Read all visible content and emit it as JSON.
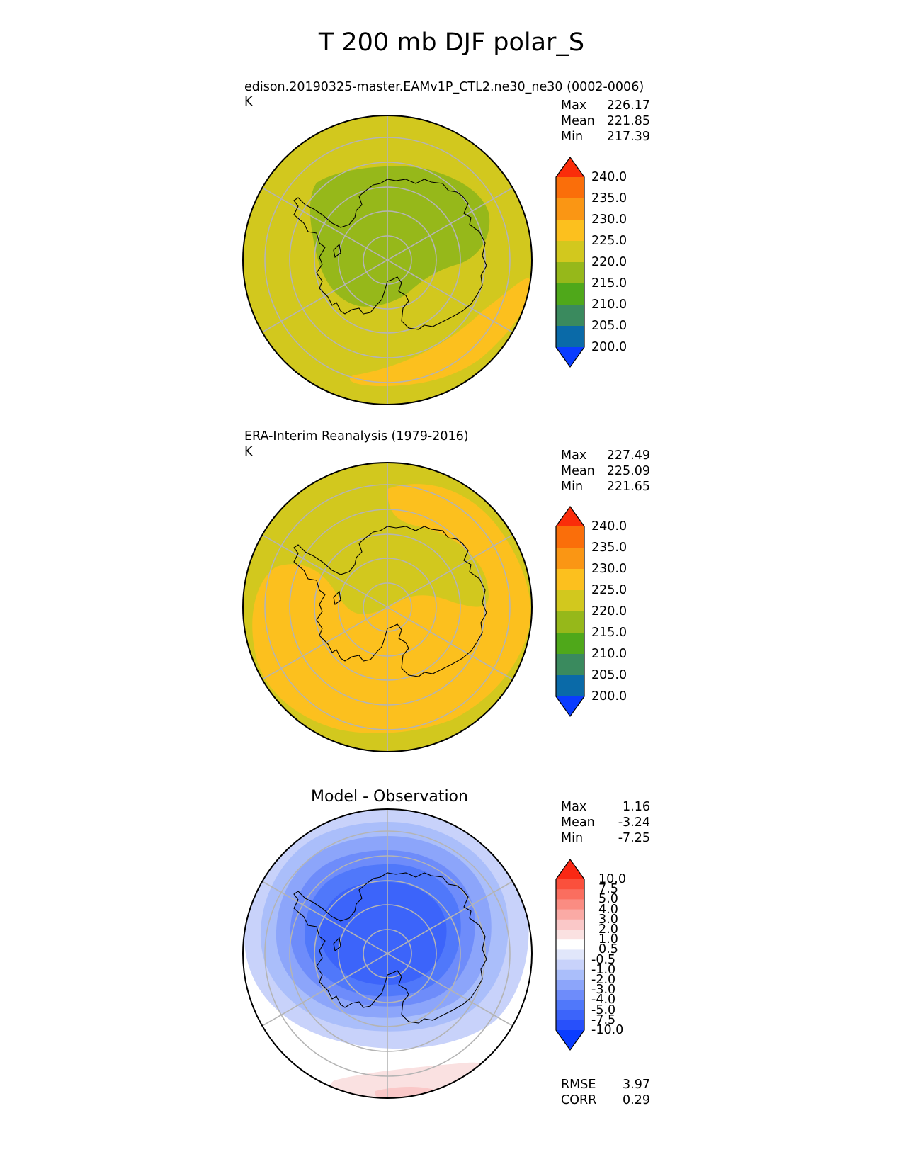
{
  "title": "T 200 mb DJF polar_S",
  "panels": [
    {
      "title": "edison.20190325-master.EAMv1P_CTL2.ne30_ne30 (0002-0006)",
      "units": "K",
      "stats": {
        "max_label": "Max",
        "max": "226.17",
        "mean_label": "Mean",
        "mean": "221.85",
        "min_label": "Min",
        "min": "217.39"
      },
      "colorbar_ticks": [
        "240.0",
        "235.0",
        "230.0",
        "225.0",
        "220.0",
        "215.0",
        "210.0",
        "205.0",
        "200.0"
      ]
    },
    {
      "title": "ERA-Interim Reanalysis (1979-2016)",
      "units": "K",
      "stats": {
        "max_label": "Max",
        "max": "227.49",
        "mean_label": "Mean",
        "mean": "225.09",
        "min_label": "Min",
        "min": "221.65"
      },
      "colorbar_ticks": [
        "240.0",
        "235.0",
        "230.0",
        "225.0",
        "220.0",
        "215.0",
        "210.0",
        "205.0",
        "200.0"
      ]
    },
    {
      "title": "Model - Observation",
      "stats": {
        "max_label": "Max",
        "max": "1.16",
        "mean_label": "Mean",
        "mean": "-3.24",
        "min_label": "Min",
        "min": "-7.25"
      },
      "colorbar_ticks": [
        "10.0",
        "7.5",
        "5.0",
        "4.0",
        "3.0",
        "2.0",
        "1.0",
        "0.5",
        "-0.5",
        "-1.0",
        "-2.0",
        "-3.0",
        "-4.0",
        "-5.0",
        "-7.5",
        "-10.0"
      ],
      "metrics": {
        "rmse_label": "RMSE",
        "rmse": "3.97",
        "corr_label": "CORR",
        "corr": "0.29"
      }
    }
  ],
  "chart_data": {
    "type": "polar-contour-map",
    "projection": "South polar stereographic",
    "variable": "T",
    "level": "200 mb",
    "season": "DJF",
    "units": "K",
    "abs_levels": [
      200,
      205,
      210,
      215,
      220,
      225,
      230,
      235,
      240
    ],
    "abs_colors": [
      "#0a3cff",
      "#0a6aa8",
      "#3a8a5e",
      "#4fa81a",
      "#96b81a",
      "#d2c81e",
      "#fcc01e",
      "#fa9614",
      "#fa6e0a",
      "#fa2d0a"
    ],
    "diff_levels": [
      -10,
      -7.5,
      -5,
      -4,
      -3,
      -2,
      -1,
      -0.5,
      0.5,
      1,
      2,
      3,
      4,
      5,
      7.5,
      10
    ],
    "diff_colors": [
      "#0a3cff",
      "#2850fa",
      "#3c64fa",
      "#5078fa",
      "#6e8cfa",
      "#8ca5fa",
      "#aabefa",
      "#c8d2fa",
      "#e1e6fa",
      "#ffffff",
      "#fae1e1",
      "#fac8c8",
      "#faaaa5",
      "#fa8c82",
      "#fa6e5f",
      "#fa503c",
      "#fa2814"
    ],
    "colors": {
      "frame": "#000000",
      "grid": "#b4b4b4",
      "coast": "#000000"
    }
  }
}
